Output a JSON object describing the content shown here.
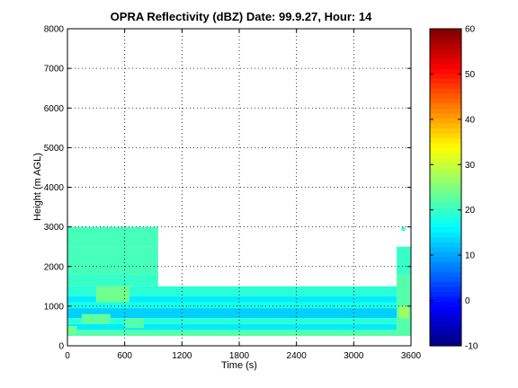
{
  "chart_data": {
    "type": "heatmap",
    "title": "OPRA Reflectivity (dBZ)  Date: 99.9.27, Hour: 14",
    "xlabel": "Time (s)",
    "ylabel": "Height (m AGL)",
    "xlim": [
      0,
      3600
    ],
    "ylim": [
      0,
      8000
    ],
    "x_ticks": [
      "0",
      "600",
      "1200",
      "1800",
      "2400",
      "3000",
      "3600"
    ],
    "y_ticks": [
      "0",
      "1000",
      "2000",
      "3000",
      "4000",
      "5000",
      "6000",
      "7000",
      "8000"
    ],
    "grid": true,
    "colorbar": {
      "colormap": "jet",
      "clim": [
        -10,
        60
      ],
      "ticks": [
        "-10",
        "0",
        "10",
        "20",
        "30",
        "40",
        "50",
        "60"
      ]
    },
    "cells": [
      {
        "t0": 0,
        "t1": 3450,
        "h0": 250,
        "h1": 400,
        "dbz": 22
      },
      {
        "t0": 0,
        "t1": 3450,
        "h0": 400,
        "h1": 550,
        "dbz": 15
      },
      {
        "t0": 0,
        "t1": 3450,
        "h0": 550,
        "h1": 700,
        "dbz": 19
      },
      {
        "t0": 0,
        "t1": 3450,
        "h0": 700,
        "h1": 950,
        "dbz": 13
      },
      {
        "t0": 0,
        "t1": 3450,
        "h0": 950,
        "h1": 1100,
        "dbz": 18
      },
      {
        "t0": 0,
        "t1": 3450,
        "h0": 1100,
        "h1": 1250,
        "dbz": 15
      },
      {
        "t0": 0,
        "t1": 3450,
        "h0": 1250,
        "h1": 1500,
        "dbz": 19
      },
      {
        "t0": 0,
        "t1": 950,
        "h0": 1500,
        "h1": 1800,
        "dbz": 20
      },
      {
        "t0": 0,
        "t1": 950,
        "h0": 1800,
        "h1": 2000,
        "dbz": 21
      },
      {
        "t0": 0,
        "t1": 950,
        "h0": 2000,
        "h1": 2500,
        "dbz": 21
      },
      {
        "t0": 0,
        "t1": 950,
        "h0": 2500,
        "h1": 3000,
        "dbz": 21
      },
      {
        "t0": 300,
        "t1": 650,
        "h0": 1100,
        "h1": 1500,
        "dbz": 24
      },
      {
        "t0": 150,
        "t1": 450,
        "h0": 550,
        "h1": 800,
        "dbz": 23
      },
      {
        "t0": 600,
        "t1": 800,
        "h0": 450,
        "h1": 700,
        "dbz": 22
      },
      {
        "t0": 0,
        "t1": 100,
        "h0": 300,
        "h1": 500,
        "dbz": 24
      },
      {
        "t0": 3450,
        "t1": 3600,
        "h0": 250,
        "h1": 1800,
        "dbz": 22
      },
      {
        "t0": 3470,
        "t1": 3580,
        "h0": 700,
        "h1": 1000,
        "dbz": 27
      },
      {
        "t0": 3450,
        "t1": 3600,
        "h0": 1800,
        "h1": 2500,
        "dbz": 20
      },
      {
        "t0": 3500,
        "t1": 3540,
        "h0": 2900,
        "h1": 3000,
        "dbz": 20
      }
    ]
  }
}
